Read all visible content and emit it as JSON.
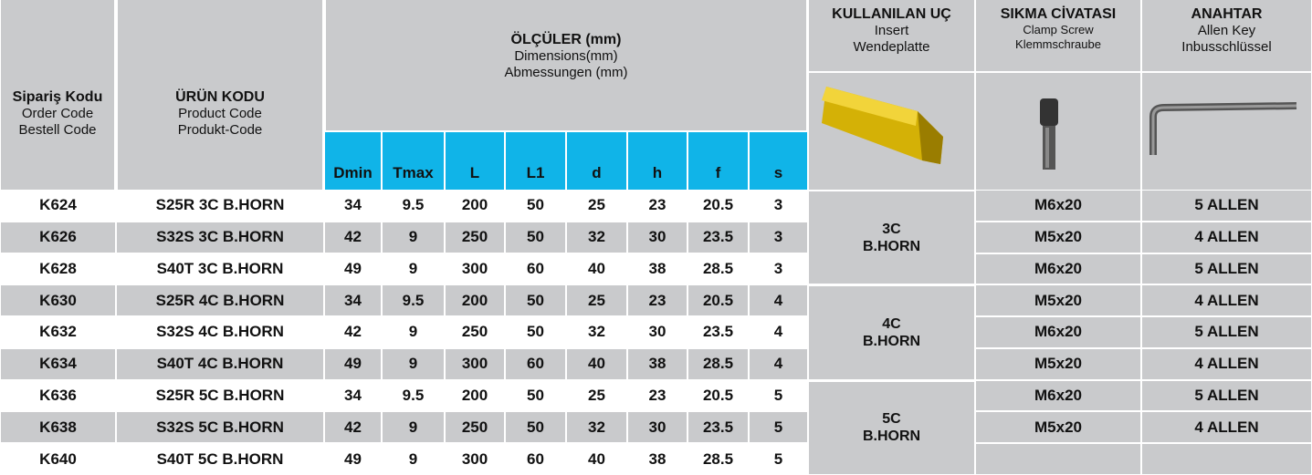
{
  "header": {
    "order_code": [
      "Sipariş Kodu",
      "Order Code",
      "Bestell Code"
    ],
    "product_code": [
      "ÜRÜN KODU",
      "Product Code",
      "Produkt-Code"
    ],
    "dimensions": [
      "ÖLÇÜLER (mm)",
      "Dimensions(mm)",
      "Abmessungen (mm)"
    ],
    "dimension_columns": [
      "Dmin",
      "Tmax",
      "L",
      "L1",
      "d",
      "h",
      "f",
      "s"
    ],
    "insert": [
      "KULLANILAN UÇ",
      "Insert",
      "Wendeplatte"
    ],
    "clamp_screw": [
      "SIKMA CİVATASI",
      "Clamp Screw",
      "Klemmschraube"
    ],
    "allen_key": [
      "ANAHTAR",
      "Allen Key",
      "Inbusschlüssel"
    ]
  },
  "table": {
    "rows": [
      [
        "K624",
        "S25R 3C B.HORN",
        34,
        9.5,
        200,
        50,
        25,
        23,
        20.5,
        3
      ],
      [
        "K626",
        "S32S 3C B.HORN",
        42,
        9,
        250,
        50,
        32,
        30,
        23.5,
        3
      ],
      [
        "K628",
        "S40T 3C B.HORN",
        49,
        9,
        300,
        60,
        40,
        38,
        28.5,
        3
      ],
      [
        "K630",
        "S25R 4C B.HORN",
        34,
        9.5,
        200,
        50,
        25,
        23,
        20.5,
        4
      ],
      [
        "K632",
        "S32S 4C B.HORN",
        42,
        9,
        250,
        50,
        32,
        30,
        23.5,
        4
      ],
      [
        "K634",
        "S40T 4C B.HORN",
        49,
        9,
        300,
        60,
        40,
        38,
        28.5,
        4
      ],
      [
        "K636",
        "S25R 5C B.HORN",
        34,
        9.5,
        200,
        50,
        25,
        23,
        20.5,
        5
      ],
      [
        "K638",
        "S32S 5C B.HORN",
        42,
        9,
        250,
        50,
        32,
        30,
        23.5,
        5
      ],
      [
        "K640",
        "S40T 5C B.HORN",
        49,
        9,
        300,
        60,
        40,
        38,
        28.5,
        5
      ]
    ],
    "inserts": [
      [
        "3C",
        "B.HORN"
      ],
      [
        "4C",
        "B.HORN"
      ],
      [
        "5C",
        "B.HORN"
      ]
    ],
    "screws": [
      "M6x20",
      "M5x20",
      "M6x20",
      "M5x20",
      "M6x20",
      "M5x20",
      "M6x20",
      "M5x20"
    ],
    "keys": [
      "5 ALLEN",
      "4 ALLEN",
      "5 ALLEN",
      "4 ALLEN",
      "5 ALLEN",
      "4 ALLEN",
      "5 ALLEN",
      "4 ALLEN"
    ]
  }
}
